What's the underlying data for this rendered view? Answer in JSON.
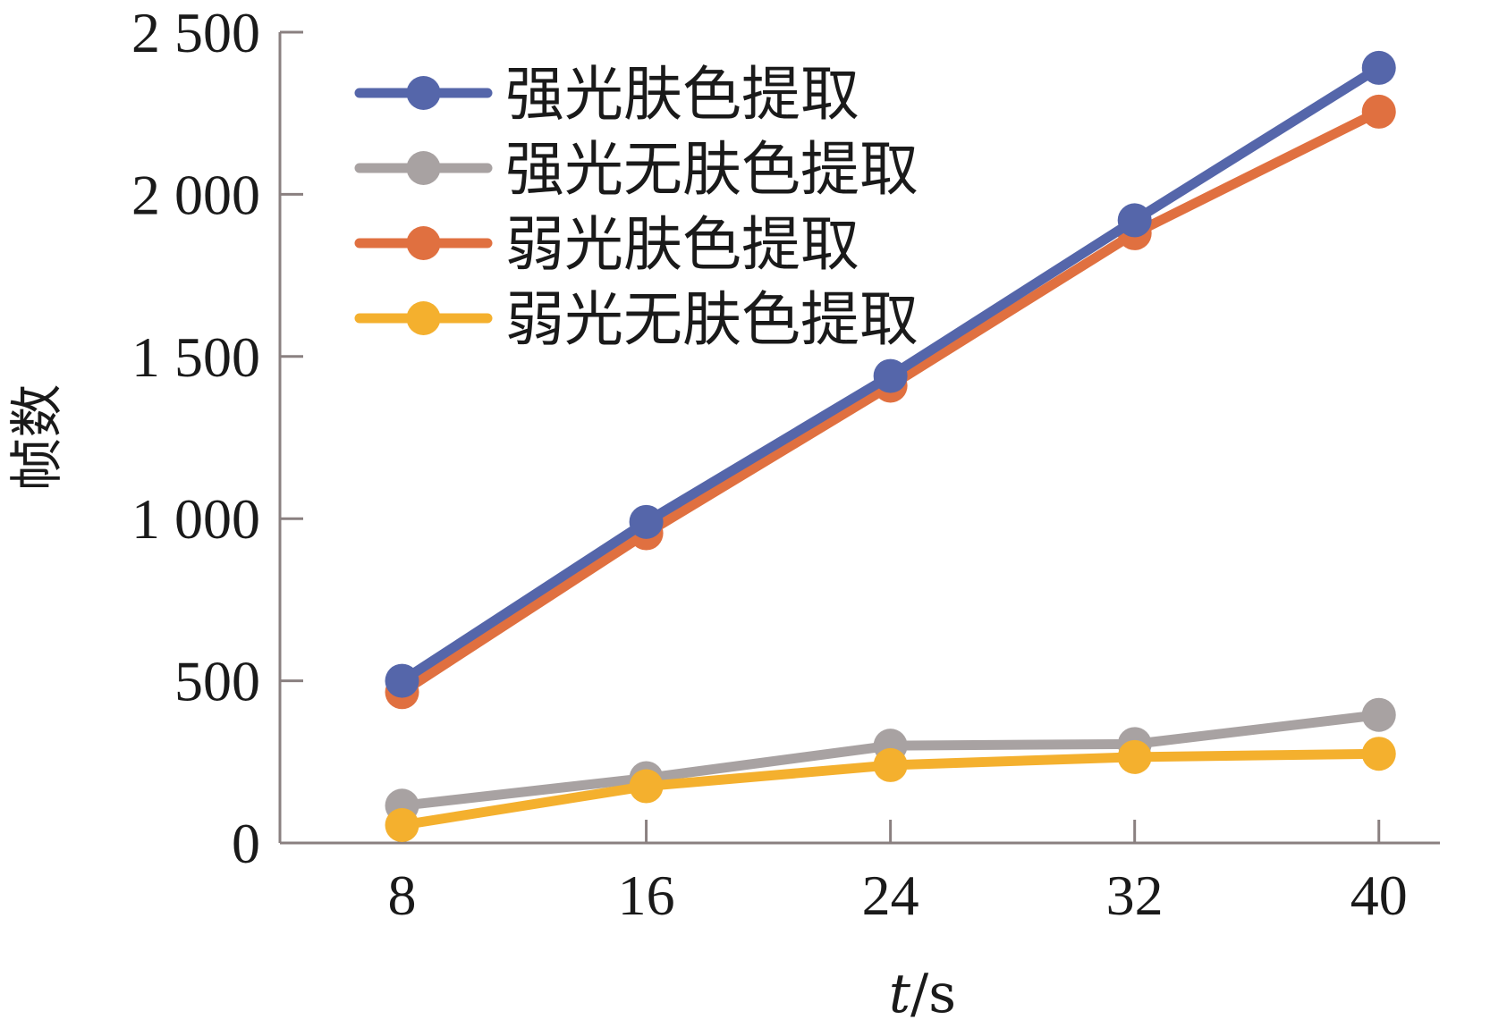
{
  "chart_data": {
    "type": "line",
    "x": [
      8,
      16,
      24,
      32,
      40
    ],
    "xlabel_italic": "t",
    "xlabel_rest": "/s",
    "ylabel": "帧数",
    "xlim": [
      4,
      42
    ],
    "ylim": [
      0,
      2500
    ],
    "x_ticks": [
      8,
      16,
      24,
      32,
      40
    ],
    "y_ticks": [
      0,
      500,
      1000,
      1500,
      2000,
      2500
    ],
    "y_tick_labels": [
      "0",
      "500",
      "1 000",
      "1 500",
      "2 000",
      "2 500"
    ],
    "grid": false,
    "legend_position": "top-left",
    "series": [
      {
        "name": "强光肤色提取",
        "color": "#5566aa",
        "values": [
          500,
          990,
          1440,
          1920,
          2390
        ]
      },
      {
        "name": "强光无肤色提取",
        "color": "#a8a2a2",
        "values": [
          115,
          200,
          300,
          305,
          395
        ]
      },
      {
        "name": "弱光肤色提取",
        "color": "#e07040",
        "values": [
          465,
          955,
          1410,
          1880,
          2255
        ]
      },
      {
        "name": "弱光无肤色提取",
        "color": "#f4b02e",
        "values": [
          55,
          175,
          240,
          265,
          275
        ]
      }
    ]
  }
}
